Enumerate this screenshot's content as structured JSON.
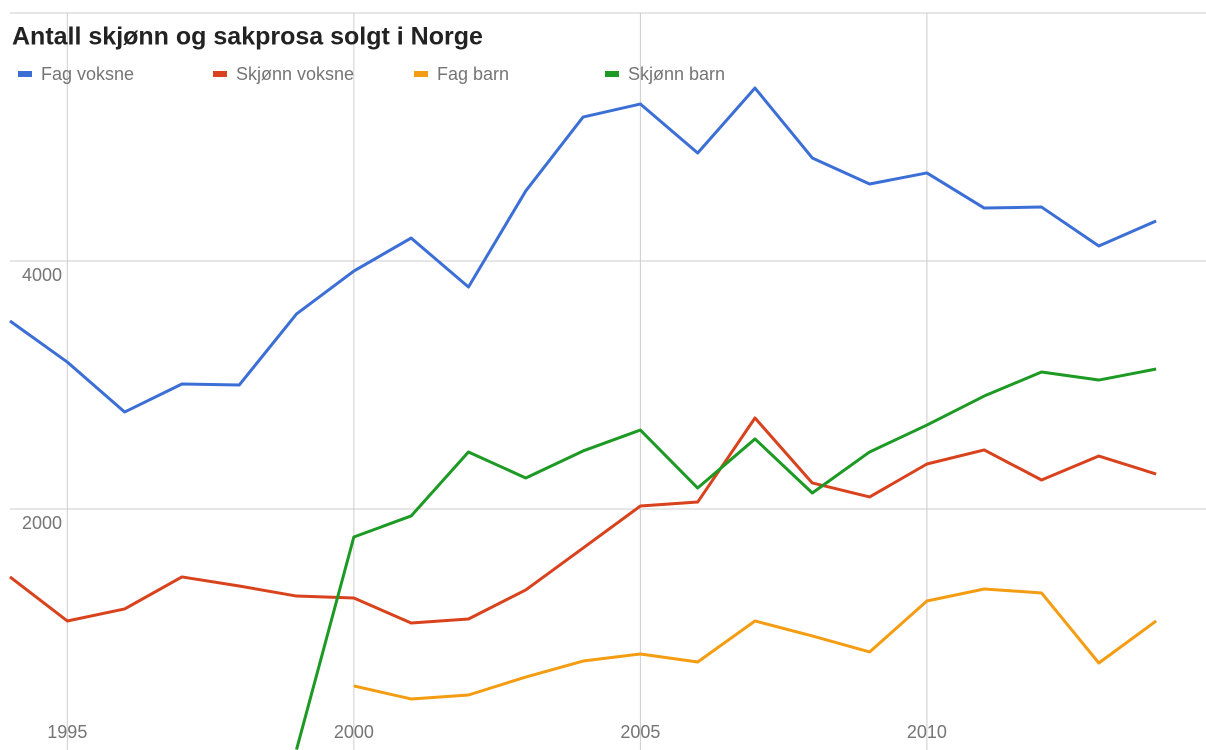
{
  "chart_data": {
    "type": "line",
    "title": "Antall skjønn og sakprosa solgt i Norge",
    "x": [
      1994,
      1995,
      1996,
      1997,
      1998,
      1999,
      2000,
      2001,
      2002,
      2003,
      2004,
      2005,
      2006,
      2007,
      2008,
      2009,
      2010,
      2011,
      2012,
      2013,
      2014
    ],
    "series": [
      {
        "name": "Fag voksne",
        "color": "#3c6fd6",
        "values": [
          3516,
          3185,
          2782,
          3008,
          3000,
          3573,
          3919,
          4185,
          3790,
          4565,
          5161,
          5266,
          4871,
          5395,
          4831,
          4621,
          4710,
          4427,
          4435,
          4121,
          4323
        ]
      },
      {
        "name": "Skjønn voksne",
        "color": "#d8421d",
        "values": [
          1452,
          1097,
          1194,
          1452,
          1379,
          1298,
          1282,
          1081,
          1113,
          1347,
          1685,
          2024,
          2056,
          2734,
          2210,
          2097,
          2363,
          2476,
          2234,
          2427,
          2282
        ]
      },
      {
        "name": "Fag barn",
        "color": "#f49c12",
        "values": [
          null,
          null,
          null,
          null,
          null,
          null,
          573,
          468,
          500,
          645,
          774,
          831,
          766,
          1097,
          976,
          847,
          1258,
          1355,
          1323,
          758,
          1097
        ]
      },
      {
        "name": "Skjønn barn",
        "color": "#1d9a24",
        "values": [
          null,
          null,
          null,
          null,
          null,
          60,
          1774,
          1944,
          2460,
          2250,
          2468,
          2637,
          2169,
          2565,
          2129,
          2460,
          2677,
          2911,
          3105,
          3040,
          3129
        ]
      }
    ],
    "xlim": [
      1994,
      2014.87
    ],
    "xticks": [
      1995,
      2000,
      2005,
      2010
    ],
    "ylim": [
      0,
      6000
    ],
    "yticks": [
      2000,
      4000
    ],
    "grid": true,
    "legend": "top-left"
  }
}
